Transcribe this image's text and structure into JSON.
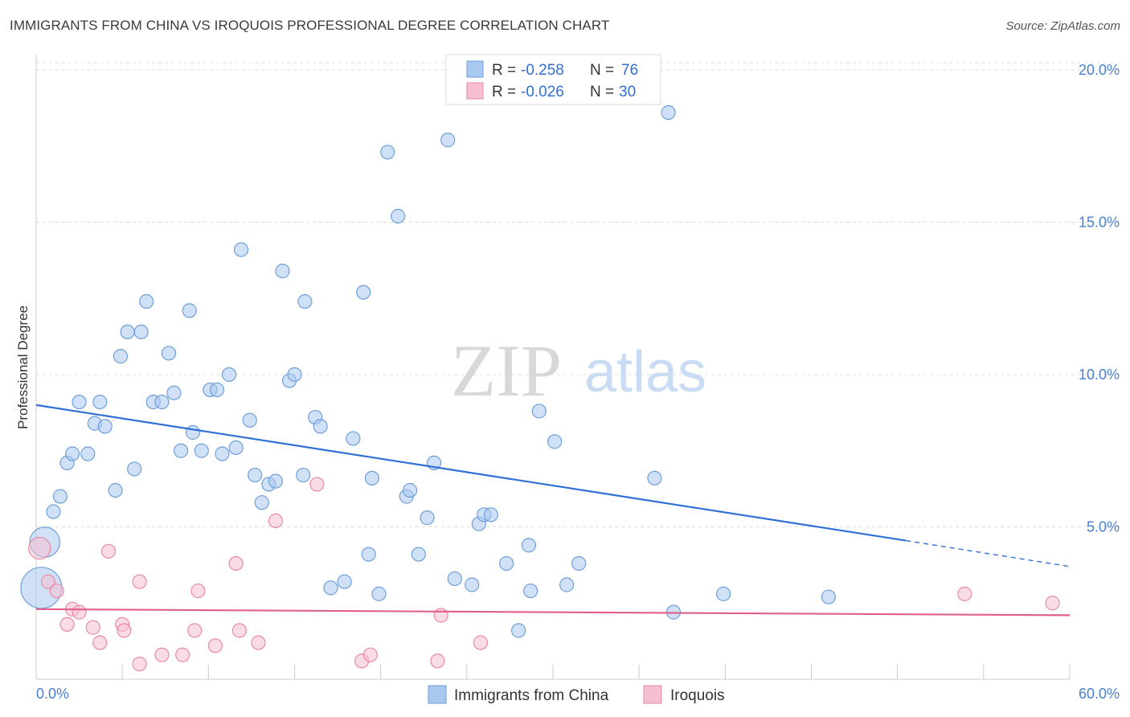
{
  "title": "IMMIGRANTS FROM CHINA VS IROQUOIS PROFESSIONAL DEGREE CORRELATION CHART",
  "source": "Source: ZipAtlas.com",
  "watermark": {
    "zip": "ZIP",
    "atlas": "atlas"
  },
  "colors": {
    "blue_fill": "#a9c8f0",
    "blue_stroke": "#6f9fd8",
    "blue_line": "#2f6fd6",
    "pink_fill": "#f6bfd0",
    "pink_stroke": "#e88aa8",
    "pink_line": "#e0608a",
    "grid": "#dddddd",
    "tick_text": "#4a7fd0"
  },
  "legend": {
    "r_label": "R =",
    "n_label": "N =",
    "items": [
      {
        "r": "-0.258",
        "n": "76"
      },
      {
        "r": "-0.026",
        "n": "30"
      }
    ]
  },
  "chart_data": {
    "type": "scatter",
    "title": "IMMIGRANTS FROM CHINA VS IROQUOIS PROFESSIONAL DEGREE CORRELATION CHART",
    "xlabel": "",
    "ylabel": "Professional Degree",
    "xlim": [
      0,
      60
    ],
    "ylim": [
      0,
      20.5
    ],
    "x_tick_labels": [
      "0.0%",
      "60.0%"
    ],
    "y_ticks": [
      5,
      10,
      15,
      20
    ],
    "y_tick_labels": [
      "5.0%",
      "10.0%",
      "15.0%",
      "20.0%"
    ],
    "series": [
      {
        "name": "Immigrants from China",
        "color": "#a9c8f0",
        "trend": {
          "x0": 0,
          "y0": 9.0,
          "x1": 50.5,
          "y1": 4.55,
          "x_dash_end": 60,
          "y_dash_end": 3.7
        },
        "points": [
          [
            0.5,
            4.5,
            2.2
          ],
          [
            0.3,
            3.0,
            3.0
          ],
          [
            1.0,
            5.5,
            1
          ],
          [
            1.4,
            6.0,
            1
          ],
          [
            1.8,
            7.1,
            1
          ],
          [
            2.1,
            7.4,
            1
          ],
          [
            2.5,
            9.1,
            1
          ],
          [
            3.0,
            7.4,
            1
          ],
          [
            3.4,
            8.4,
            1
          ],
          [
            3.7,
            9.1,
            1
          ],
          [
            4.0,
            8.3,
            1
          ],
          [
            4.6,
            6.2,
            1
          ],
          [
            4.9,
            10.6,
            1
          ],
          [
            5.3,
            11.4,
            1
          ],
          [
            5.7,
            6.9,
            1
          ],
          [
            6.1,
            11.4,
            1
          ],
          [
            6.4,
            12.4,
            1
          ],
          [
            6.8,
            9.1,
            1
          ],
          [
            7.3,
            9.1,
            1
          ],
          [
            7.7,
            10.7,
            1
          ],
          [
            8.0,
            9.4,
            1
          ],
          [
            8.4,
            7.5,
            1
          ],
          [
            8.9,
            12.1,
            1
          ],
          [
            9.1,
            8.1,
            1
          ],
          [
            9.6,
            7.5,
            1
          ],
          [
            10.1,
            9.5,
            1
          ],
          [
            10.5,
            9.5,
            1
          ],
          [
            10.8,
            7.4,
            1
          ],
          [
            11.2,
            10.0,
            1
          ],
          [
            11.6,
            7.6,
            1
          ],
          [
            11.9,
            14.1,
            1
          ],
          [
            12.4,
            8.5,
            1
          ],
          [
            12.7,
            6.7,
            1
          ],
          [
            13.1,
            5.8,
            1
          ],
          [
            13.5,
            6.4,
            1
          ],
          [
            13.9,
            6.5,
            1
          ],
          [
            14.3,
            13.4,
            1
          ],
          [
            14.7,
            9.8,
            1
          ],
          [
            15.0,
            10.0,
            1
          ],
          [
            15.5,
            6.7,
            1
          ],
          [
            15.6,
            12.4,
            1
          ],
          [
            16.2,
            8.6,
            1
          ],
          [
            16.5,
            8.3,
            1
          ],
          [
            17.1,
            3.0,
            1
          ],
          [
            17.9,
            3.2,
            1
          ],
          [
            18.4,
            7.9,
            1
          ],
          [
            19.0,
            12.7,
            1
          ],
          [
            19.3,
            4.1,
            1
          ],
          [
            19.5,
            6.6,
            1
          ],
          [
            19.9,
            2.8,
            1
          ],
          [
            20.4,
            17.3,
            1
          ],
          [
            21.0,
            15.2,
            1
          ],
          [
            21.5,
            6.0,
            1
          ],
          [
            21.7,
            6.2,
            1
          ],
          [
            22.2,
            4.1,
            1
          ],
          [
            22.7,
            5.3,
            1
          ],
          [
            23.1,
            7.1,
            1
          ],
          [
            23.9,
            17.7,
            1
          ],
          [
            24.3,
            3.3,
            1
          ],
          [
            25.3,
            3.1,
            1
          ],
          [
            25.7,
            5.1,
            1
          ],
          [
            26.0,
            5.4,
            1
          ],
          [
            26.4,
            5.4,
            1
          ],
          [
            27.3,
            3.8,
            1
          ],
          [
            28.0,
            1.6,
            1
          ],
          [
            28.6,
            4.4,
            1
          ],
          [
            28.7,
            2.9,
            1
          ],
          [
            29.2,
            8.8,
            1
          ],
          [
            30.1,
            7.8,
            1
          ],
          [
            30.8,
            3.1,
            1
          ],
          [
            31.5,
            3.8,
            1
          ],
          [
            35.9,
            6.6,
            1
          ],
          [
            36.7,
            18.6,
            1
          ],
          [
            37.0,
            2.2,
            1
          ],
          [
            39.9,
            2.8,
            1
          ],
          [
            46.0,
            2.7,
            1
          ]
        ]
      },
      {
        "name": "Iroquois",
        "color": "#f6bfd0",
        "trend": {
          "x0": 0,
          "y0": 2.3,
          "x1": 60,
          "y1": 2.1
        },
        "points": [
          [
            0.2,
            4.3,
            1.6
          ],
          [
            0.7,
            3.2,
            1
          ],
          [
            1.2,
            2.9,
            1
          ],
          [
            1.8,
            1.8,
            1
          ],
          [
            2.1,
            2.3,
            1
          ],
          [
            2.5,
            2.2,
            1
          ],
          [
            3.3,
            1.7,
            1
          ],
          [
            3.7,
            1.2,
            1
          ],
          [
            4.2,
            4.2,
            1
          ],
          [
            5.0,
            1.8,
            1
          ],
          [
            5.1,
            1.6,
            1
          ],
          [
            6.0,
            0.5,
            1
          ],
          [
            6.0,
            3.2,
            1
          ],
          [
            7.3,
            0.8,
            1
          ],
          [
            8.5,
            0.8,
            1
          ],
          [
            9.2,
            1.6,
            1
          ],
          [
            9.4,
            2.9,
            1
          ],
          [
            10.4,
            1.1,
            1
          ],
          [
            11.6,
            3.8,
            1
          ],
          [
            11.8,
            1.6,
            1
          ],
          [
            12.9,
            1.2,
            1
          ],
          [
            13.9,
            5.2,
            1
          ],
          [
            16.3,
            6.4,
            1
          ],
          [
            18.9,
            0.6,
            1
          ],
          [
            19.4,
            0.8,
            1
          ],
          [
            23.3,
            0.6,
            1
          ],
          [
            23.5,
            2.1,
            1
          ],
          [
            25.8,
            1.2,
            1
          ],
          [
            53.9,
            2.8,
            1
          ],
          [
            59.0,
            2.5,
            1
          ]
        ]
      }
    ],
    "bottom_legend": [
      "Immigrants from China",
      "Iroquois"
    ]
  }
}
